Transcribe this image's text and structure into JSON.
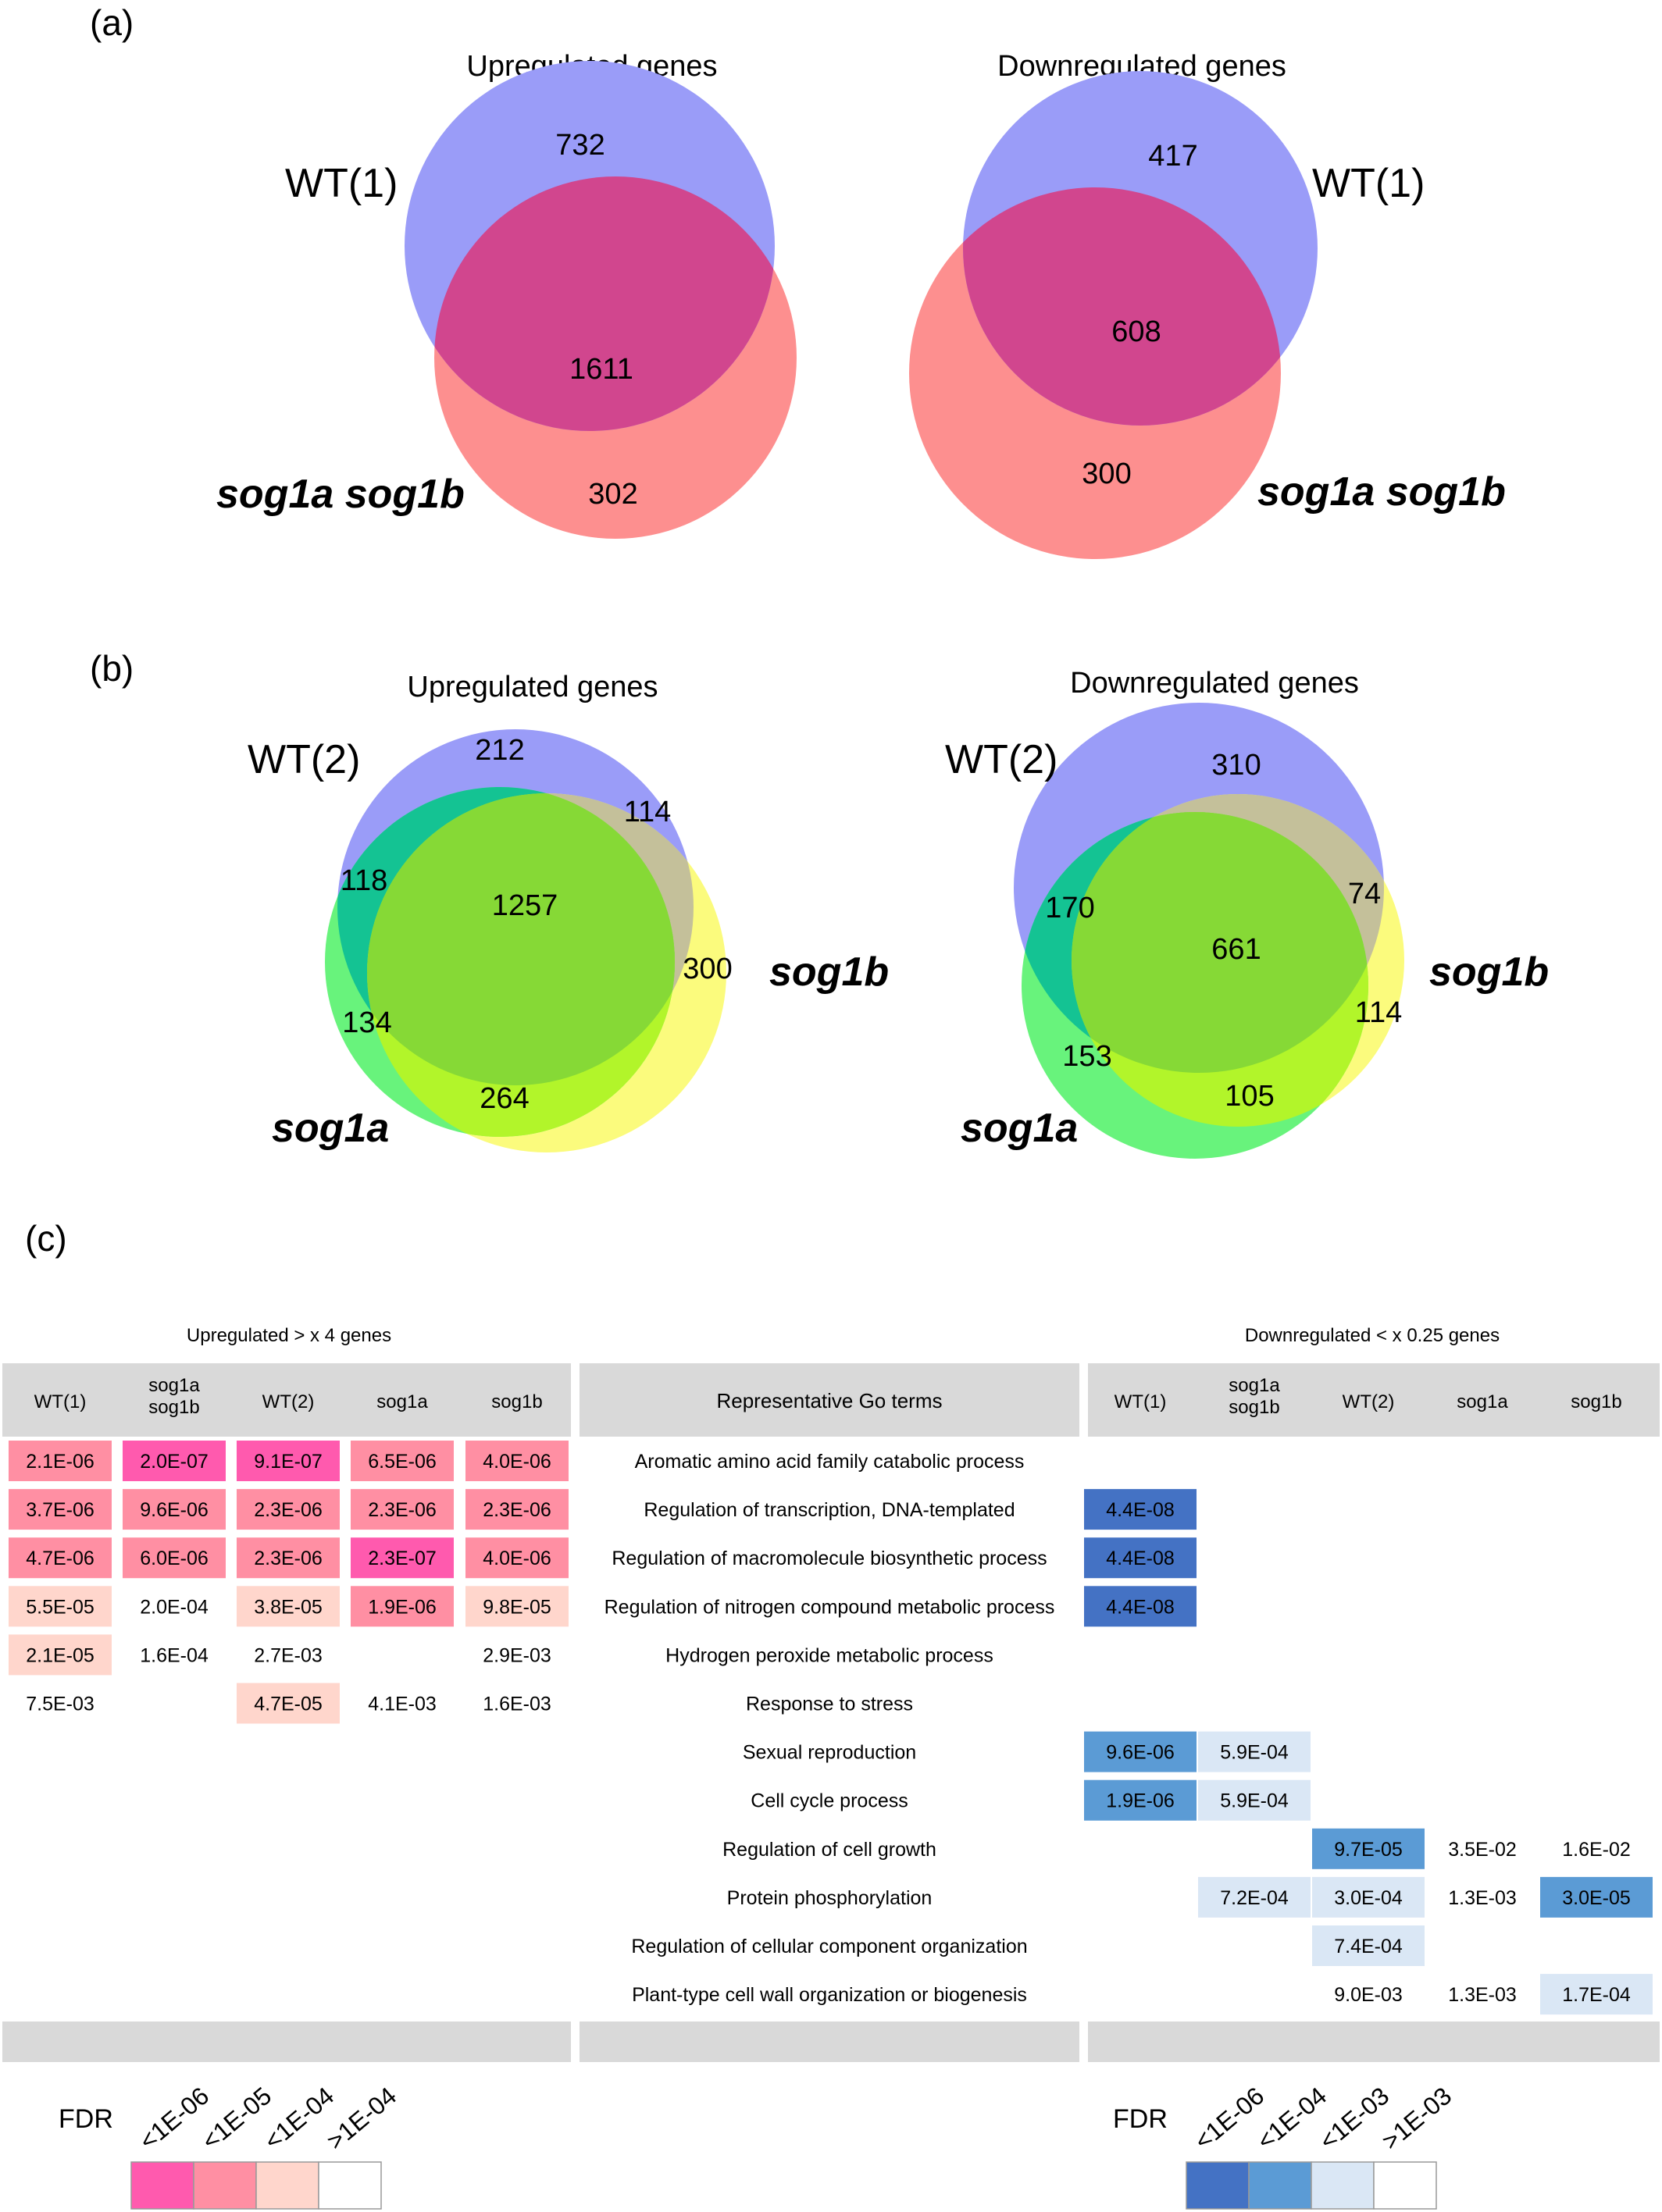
{
  "panel_a": {
    "label": "(a)",
    "up": {
      "title": "Upregulated genes",
      "set1": "WT(1)",
      "set2": "sog1a sog1b",
      "only1": "732",
      "both": "1611",
      "only2": "302"
    },
    "down": {
      "title": "Downregulated genes",
      "set1": "WT(1)",
      "set2": "sog1a sog1b",
      "only1": "417",
      "both": "608",
      "only2": "300"
    }
  },
  "panel_b": {
    "label": "(b)",
    "up": {
      "title": "Upregulated genes",
      "wt": "WT(2)",
      "a": "sog1a",
      "b": "sog1b",
      "wt_only": "212",
      "wt_b": "114",
      "wt_a": "118",
      "all": "1257",
      "b_only": "300",
      "a_only": "134",
      "a_b": "264"
    },
    "down": {
      "title": "Downregulated genes",
      "wt": "WT(2)",
      "a": "sog1a",
      "b": "sog1b",
      "wt_only": "310",
      "wt_a": "170",
      "wt_b": "74",
      "all": "661",
      "b_only": "114",
      "a_only": "153",
      "a_b": "105"
    }
  },
  "panel_c": {
    "label": "(c)",
    "up_title": "Upregulated > x 4 genes",
    "down_title": "Downregulated < x 0.25 genes",
    "go_header": "Representative Go terms",
    "up_headers": [
      "WT(1)",
      "sog1a\nsog1b",
      "WT(2)",
      "sog1a",
      "sog1b"
    ],
    "down_headers": [
      "WT(1)",
      "sog1a\nsog1b",
      "WT(2)",
      "sog1a",
      "sog1b"
    ],
    "rows": [
      {
        "term": "Aromatic amino acid family catabolic process",
        "up": [
          "2.1E-06",
          "2.0E-07",
          "9.1E-07",
          "6.5E-06",
          "4.0E-06"
        ],
        "down": [
          "",
          "",
          "",
          "",
          ""
        ]
      },
      {
        "term": "Regulation of transcription, DNA-templated",
        "up": [
          "3.7E-06",
          "9.6E-06",
          "2.3E-06",
          "2.3E-06",
          "2.3E-06"
        ],
        "down": [
          "4.4E-08",
          "",
          "",
          "",
          ""
        ]
      },
      {
        "term": "Regulation of macromolecule biosynthetic process",
        "up": [
          "4.7E-06",
          "6.0E-06",
          "2.3E-06",
          "2.3E-07",
          "4.0E-06"
        ],
        "down": [
          "4.4E-08",
          "",
          "",
          "",
          ""
        ]
      },
      {
        "term": "Regulation of nitrogen compound metabolic process",
        "up": [
          "5.5E-05",
          "2.0E-04",
          "3.8E-05",
          "1.9E-06",
          "9.8E-05"
        ],
        "down": [
          "4.4E-08",
          "",
          "",
          "",
          ""
        ]
      },
      {
        "term": "Hydrogen peroxide metabolic process",
        "up": [
          "2.1E-05",
          "1.6E-04",
          "2.7E-03",
          "",
          "2.9E-03"
        ],
        "down": [
          "",
          "",
          "",
          "",
          ""
        ]
      },
      {
        "term": "Response to stress",
        "up": [
          "7.5E-03",
          "",
          "4.7E-05",
          "4.1E-03",
          "1.6E-03"
        ],
        "down": [
          "",
          "",
          "",
          "",
          ""
        ]
      },
      {
        "term": "Sexual reproduction",
        "up": [
          "",
          "",
          "",
          "",
          ""
        ],
        "down": [
          "9.6E-06",
          "5.9E-04",
          "",
          "",
          ""
        ]
      },
      {
        "term": "Cell cycle process",
        "up": [
          "",
          "",
          "",
          "",
          ""
        ],
        "down": [
          "1.9E-06",
          "5.9E-04",
          "",
          "",
          ""
        ]
      },
      {
        "term": "Regulation of cell growth",
        "up": [
          "",
          "",
          "",
          "",
          ""
        ],
        "down": [
          "",
          "",
          "9.7E-05",
          "3.5E-02",
          "1.6E-02"
        ]
      },
      {
        "term": "Protein phosphorylation",
        "up": [
          "",
          "",
          "",
          "",
          ""
        ],
        "down": [
          "",
          "7.2E-04",
          "3.0E-04",
          "1.3E-03",
          "3.0E-05"
        ]
      },
      {
        "term": "Regulation of cellular component organization",
        "up": [
          "",
          "",
          "",
          "",
          ""
        ],
        "down": [
          "",
          "",
          "7.4E-04",
          "",
          ""
        ]
      },
      {
        "term": "Plant-type cell wall organization or biogenesis",
        "up": [
          "",
          "",
          "",
          "",
          ""
        ],
        "down": [
          "",
          "",
          "9.0E-03",
          "1.3E-03",
          "1.7E-04"
        ]
      }
    ],
    "legend_up": {
      "title": "FDR",
      "labels": [
        "<1E-06",
        "<1E-05",
        "<1E-04",
        ">1E-04"
      ],
      "colors": [
        "#ff5aae",
        "#ff8fa3",
        "#ffd6cc",
        "#ffffff"
      ]
    },
    "legend_down": {
      "title": "FDR",
      "labels": [
        "<1E-06",
        "<1E-04",
        "<1E-03",
        ">1E-03"
      ],
      "colors": [
        "#4472c4",
        "#5b9bd5",
        "#dae7f5",
        "#ffffff"
      ]
    }
  },
  "colors": {
    "venn_blue": "#9a9cf8",
    "venn_red": "#fd8f8f",
    "venn_overlap": "#d1468e",
    "venn_green": "#68f37c",
    "venn_yellow": "#fbfb7d",
    "venn_core": "#86d936",
    "header_gray": "#d9d9d9"
  }
}
